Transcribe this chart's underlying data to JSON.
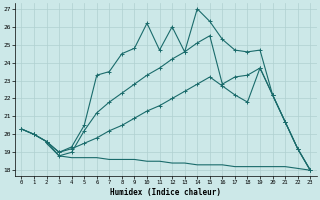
{
  "xlabel": "Humidex (Indice chaleur)",
  "xlim": [
    -0.5,
    23.5
  ],
  "ylim": [
    17.7,
    27.3
  ],
  "yticks": [
    18,
    19,
    20,
    21,
    22,
    23,
    24,
    25,
    26,
    27
  ],
  "xticks": [
    0,
    1,
    2,
    3,
    4,
    5,
    6,
    7,
    8,
    9,
    10,
    11,
    12,
    13,
    14,
    15,
    16,
    17,
    18,
    19,
    20,
    21,
    22,
    23
  ],
  "bg_color": "#cce8e8",
  "line_color": "#1a6b6b",
  "grid_color": "#b0d0d0",
  "curve_jagged_x": [
    0,
    1,
    2,
    3,
    4,
    5,
    6,
    7,
    8,
    9,
    10,
    11,
    12,
    13,
    14,
    15,
    16,
    17,
    18,
    19,
    20,
    21,
    22,
    23
  ],
  "curve_jagged_y": [
    20.3,
    20.0,
    19.6,
    19.0,
    19.3,
    20.5,
    23.3,
    23.5,
    24.5,
    24.8,
    26.2,
    24.7,
    26.0,
    24.6,
    27.0,
    26.3,
    25.3,
    24.7,
    24.6,
    24.7,
    22.2,
    20.7,
    19.2,
    18.0
  ],
  "curve_avg_x": [
    0,
    1,
    2,
    3,
    4,
    5,
    6,
    7,
    8,
    9,
    10,
    11,
    12,
    13,
    14,
    15,
    16,
    17,
    18,
    19,
    20,
    21,
    22,
    23
  ],
  "curve_avg_y": [
    20.3,
    20.0,
    19.6,
    18.8,
    19.0,
    20.2,
    21.2,
    21.8,
    22.3,
    22.8,
    23.3,
    23.7,
    24.2,
    24.6,
    25.1,
    25.5,
    22.8,
    23.2,
    23.3,
    23.7,
    22.2,
    20.7,
    19.2,
    18.0
  ],
  "curve_lin1_x": [
    0,
    1,
    2,
    3,
    4,
    5,
    6,
    7,
    8,
    9,
    10,
    11,
    12,
    13,
    14,
    15,
    16,
    17,
    18,
    19,
    20,
    21,
    22,
    23
  ],
  "curve_lin1_y": [
    20.3,
    20.0,
    19.6,
    19.0,
    19.2,
    19.5,
    19.8,
    20.2,
    20.5,
    20.9,
    21.3,
    21.6,
    22.0,
    22.4,
    22.8,
    23.2,
    22.7,
    22.2,
    21.8,
    23.7,
    22.2,
    20.7,
    19.2,
    18.0
  ],
  "curve_flat_x": [
    2,
    3,
    4,
    5,
    6,
    7,
    8,
    9,
    10,
    11,
    12,
    13,
    14,
    15,
    16,
    17,
    18,
    19,
    20,
    21,
    22,
    23
  ],
  "curve_flat_y": [
    19.5,
    18.8,
    18.7,
    18.7,
    18.7,
    18.6,
    18.6,
    18.6,
    18.5,
    18.5,
    18.4,
    18.4,
    18.3,
    18.3,
    18.3,
    18.2,
    18.2,
    18.2,
    18.2,
    18.2,
    18.1,
    18.0
  ]
}
